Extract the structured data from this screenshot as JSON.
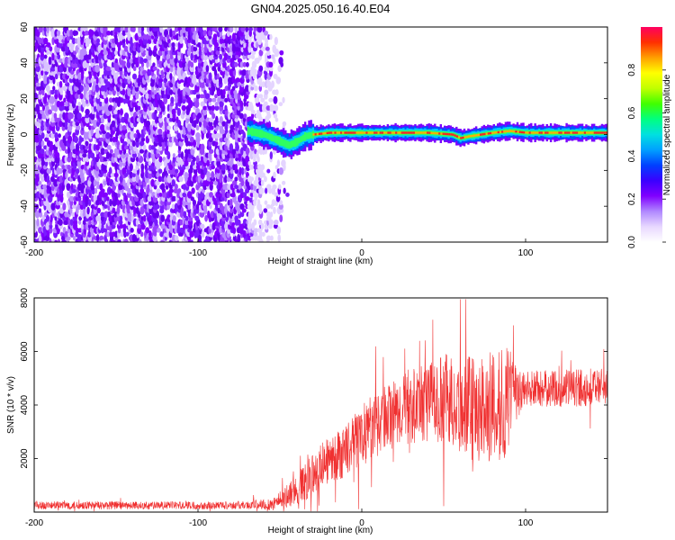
{
  "title": "GN04.2025.050.16.40.E04",
  "chart_data": [
    {
      "type": "heatmap",
      "name": "spectrogram",
      "xlabel": "Height of straight line (km)",
      "ylabel": "Frequency (Hz)",
      "xlim": [
        -200,
        150
      ],
      "ylim": [
        -60,
        60
      ],
      "xticks": [
        -200,
        -100,
        0,
        100
      ],
      "yticks": [
        -60,
        -40,
        -20,
        0,
        20,
        40,
        60
      ],
      "colorbar": {
        "label": "Normalized spectral amplitude",
        "range": [
          0,
          1
        ],
        "ticks": [
          0.0,
          0.2,
          0.4,
          0.6,
          0.8
        ],
        "colormap": [
          "#ffffff",
          "#e8d8ff",
          "#b088ff",
          "#8000ff",
          "#3a00ff",
          "#0040ff",
          "#00a0ff",
          "#00e0e0",
          "#00ff80",
          "#40ff00",
          "#c0ff00",
          "#ffff00",
          "#ffa000",
          "#ff3000",
          "#ff0060"
        ]
      },
      "noise_region_x": [
        -200,
        -70
      ],
      "fading_region_x": [
        -70,
        -45
      ],
      "signal": {
        "x": [
          -70,
          -60,
          -50,
          -45,
          -40,
          -35,
          -30,
          -20,
          0,
          20,
          40,
          55,
          60,
          65,
          80,
          90,
          100,
          150
        ],
        "freq": [
          2,
          0,
          -4,
          -6,
          -4,
          -1,
          0,
          1,
          1,
          1,
          1,
          0,
          -2,
          -1,
          1,
          2,
          1,
          1
        ]
      }
    },
    {
      "type": "line",
      "name": "snr",
      "xlabel": "Height of straight line (km)",
      "ylabel": "SNR (10 * v/v)",
      "xlim": [
        -200,
        150
      ],
      "ylim": [
        0,
        8000
      ],
      "xticks": [
        -200,
        -100,
        0,
        100
      ],
      "yticks": [
        2000,
        4000,
        6000,
        8000
      ],
      "color": "#f03030",
      "envelope": {
        "x": [
          -200,
          -150,
          -100,
          -70,
          -55,
          -45,
          -35,
          -25,
          -10,
          0,
          10,
          20,
          30,
          40,
          50,
          60,
          70,
          80,
          90,
          95,
          100,
          120,
          150
        ],
        "mean": [
          250,
          250,
          250,
          260,
          300,
          600,
          1100,
          1700,
          2300,
          2900,
          3400,
          3700,
          3900,
          4100,
          4200,
          4000,
          3800,
          3900,
          4000,
          4400,
          4600,
          4600,
          4700
        ],
        "spread": [
          150,
          150,
          150,
          150,
          250,
          450,
          700,
          850,
          1000,
          1100,
          1200,
          1300,
          1400,
          1500,
          1700,
          1900,
          2000,
          2100,
          2200,
          900,
          700,
          700,
          700
        ]
      }
    }
  ]
}
